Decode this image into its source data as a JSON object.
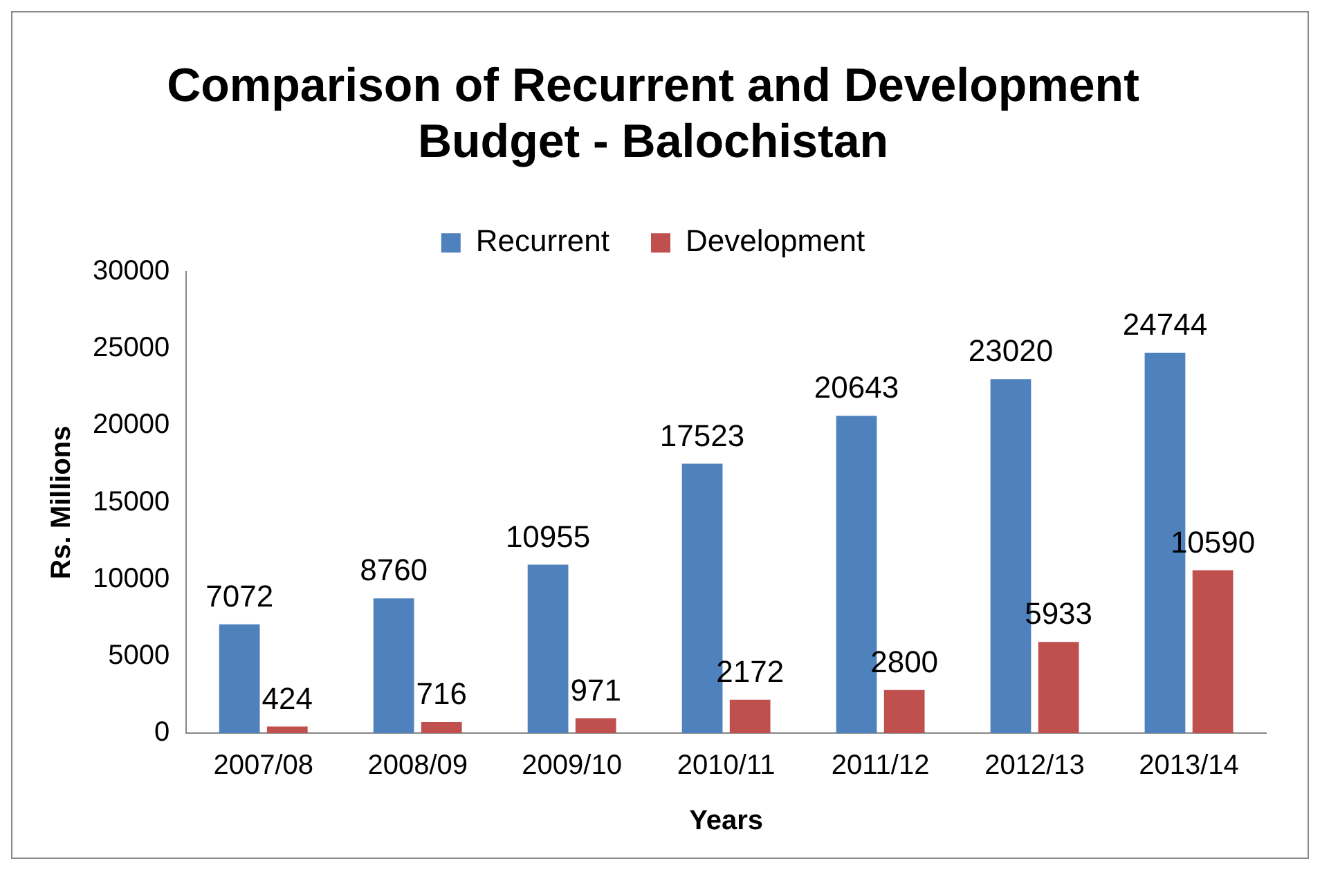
{
  "chart_data": {
    "type": "bar",
    "title": "Comparison of Recurrent and Development Budget - Balochistan",
    "xlabel": "Years",
    "ylabel": "Rs. Millions",
    "categories": [
      "2007/08",
      "2008/09",
      "2009/10",
      "2010/11",
      "2011/12",
      "2012/13",
      "2013/14"
    ],
    "series": [
      {
        "name": "Recurrent",
        "color": "#4f81bd",
        "values": [
          7072,
          8760,
          10955,
          17523,
          20643,
          23020,
          24744
        ]
      },
      {
        "name": "Development",
        "color": "#c0504d",
        "values": [
          424,
          716,
          971,
          2172,
          2800,
          5933,
          10590
        ]
      }
    ],
    "ylim": [
      0,
      30000
    ],
    "yticks": [
      0,
      5000,
      10000,
      15000,
      20000,
      25000,
      30000
    ],
    "grid": false,
    "legend": "top",
    "data_labels": true
  }
}
